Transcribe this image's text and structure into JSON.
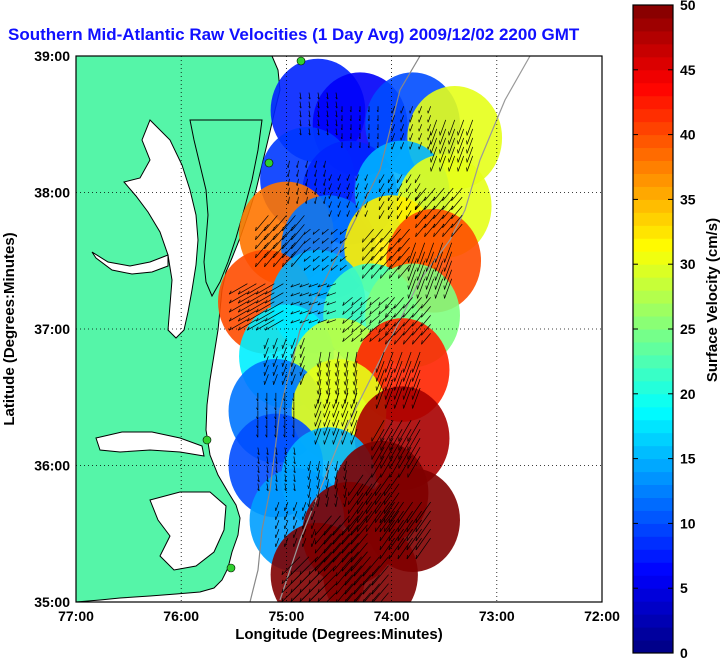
{
  "chart_data": {
    "type": "heatmap",
    "title": "Southern Mid-Atlantic Raw Velocities (1 Day Avg) 2009/12/02 2200 GMT",
    "xlabel": "Longitude (Degrees:Minutes)",
    "ylabel": "Latitude (Degrees:Minutes)",
    "xlim": [
      -77,
      -72
    ],
    "ylim": [
      35,
      39
    ],
    "x_ticks": [
      {
        "value": -77,
        "label": "77:00"
      },
      {
        "value": -76,
        "label": "76:00"
      },
      {
        "value": -75,
        "label": "75:00"
      },
      {
        "value": -74,
        "label": "74:00"
      },
      {
        "value": -73,
        "label": "73:00"
      },
      {
        "value": -72,
        "label": "72:00"
      }
    ],
    "y_ticks": [
      {
        "value": 35,
        "label": "35:00"
      },
      {
        "value": 36,
        "label": "36:00"
      },
      {
        "value": 37,
        "label": "37:00"
      },
      {
        "value": 38,
        "label": "38:00"
      },
      {
        "value": 39,
        "label": "39:00"
      }
    ],
    "grid": "dotted",
    "colorbar": {
      "label": "Surface Velocity (cm/s)",
      "min": 0,
      "max": 50,
      "ticks": [
        {
          "value": 0,
          "label": "0"
        },
        {
          "value": 5,
          "label": "5"
        },
        {
          "value": 10,
          "label": "10"
        },
        {
          "value": 15,
          "label": "15"
        },
        {
          "value": 20,
          "label": "20"
        },
        {
          "value": 25,
          "label": "25"
        },
        {
          "value": 30,
          "label": "30"
        },
        {
          "value": 35,
          "label": "35"
        },
        {
          "value": 40,
          "label": "40"
        },
        {
          "value": 45,
          "label": "45"
        },
        {
          "value": 50,
          "label": "50"
        }
      ]
    },
    "land_color": "#55f5a8",
    "coast_color": "#000000",
    "field": [
      {
        "lon": -74.7,
        "lat": 38.6,
        "speed": 8,
        "dir": 170
      },
      {
        "lon": -74.3,
        "lat": 38.5,
        "speed": 6,
        "dir": 180
      },
      {
        "lon": -73.8,
        "lat": 38.5,
        "speed": 10,
        "dir": 200
      },
      {
        "lon": -73.4,
        "lat": 38.4,
        "speed": 30,
        "dir": 200
      },
      {
        "lon": -74.8,
        "lat": 38.1,
        "speed": 9,
        "dir": 190
      },
      {
        "lon": -74.4,
        "lat": 38.0,
        "speed": 8,
        "dir": 200
      },
      {
        "lon": -73.9,
        "lat": 38.0,
        "speed": 15,
        "dir": 210
      },
      {
        "lon": -73.5,
        "lat": 37.9,
        "speed": 30,
        "dir": 220
      },
      {
        "lon": -75.0,
        "lat": 37.7,
        "speed": 38,
        "dir": 220
      },
      {
        "lon": -74.6,
        "lat": 37.6,
        "speed": 12,
        "dir": 230
      },
      {
        "lon": -74.0,
        "lat": 37.6,
        "speed": 32,
        "dir": 220
      },
      {
        "lon": -73.6,
        "lat": 37.5,
        "speed": 40,
        "dir": 200
      },
      {
        "lon": -75.2,
        "lat": 37.2,
        "speed": 40,
        "dir": 240
      },
      {
        "lon": -74.7,
        "lat": 37.2,
        "speed": 15,
        "dir": 250
      },
      {
        "lon": -74.2,
        "lat": 37.1,
        "speed": 22,
        "dir": 230
      },
      {
        "lon": -73.8,
        "lat": 37.1,
        "speed": 25,
        "dir": 220
      },
      {
        "lon": -75.0,
        "lat": 36.8,
        "speed": 18,
        "dir": 200
      },
      {
        "lon": -74.5,
        "lat": 36.7,
        "speed": 28,
        "dir": 190
      },
      {
        "lon": -73.9,
        "lat": 36.7,
        "speed": 42,
        "dir": 200
      },
      {
        "lon": -75.1,
        "lat": 36.4,
        "speed": 12,
        "dir": 180
      },
      {
        "lon": -74.5,
        "lat": 36.4,
        "speed": 30,
        "dir": 200
      },
      {
        "lon": -73.9,
        "lat": 36.2,
        "speed": 48,
        "dir": 210
      },
      {
        "lon": -75.1,
        "lat": 36.0,
        "speed": 10,
        "dir": 170
      },
      {
        "lon": -74.6,
        "lat": 35.9,
        "speed": 15,
        "dir": 190
      },
      {
        "lon": -74.1,
        "lat": 35.8,
        "speed": 50,
        "dir": 215
      },
      {
        "lon": -74.9,
        "lat": 35.6,
        "speed": 14,
        "dir": 200
      },
      {
        "lon": -74.4,
        "lat": 35.5,
        "speed": 50,
        "dir": 220
      },
      {
        "lon": -73.8,
        "lat": 35.6,
        "speed": 50,
        "dir": 215
      },
      {
        "lon": -74.7,
        "lat": 35.2,
        "speed": 50,
        "dir": 225
      },
      {
        "lon": -74.2,
        "lat": 35.2,
        "speed": 50,
        "dir": 220
      }
    ]
  }
}
